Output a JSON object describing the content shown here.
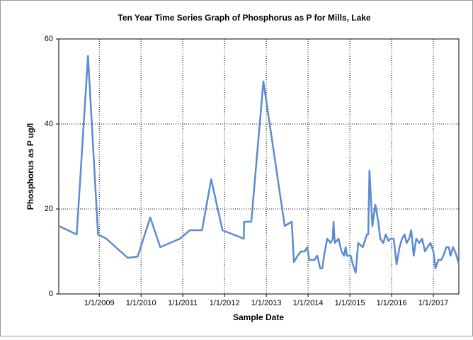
{
  "chart_data": {
    "type": "line",
    "title": "Ten Year Time Series Graph of Phosphorus as P for Mills, Lake",
    "x_label": "Sample Date",
    "y_label": "Phosphorus as P ug/l",
    "xlim": [
      2008.03,
      2017.61
    ],
    "ylim": [
      0,
      60
    ],
    "xticks": [
      {
        "value": 2009,
        "label": "1/1/2009"
      },
      {
        "value": 2010,
        "label": "1/1/2010"
      },
      {
        "value": 2011,
        "label": "1/1/2011"
      },
      {
        "value": 2012,
        "label": "1/1/2012"
      },
      {
        "value": 2013,
        "label": "1/1/2013"
      },
      {
        "value": 2014,
        "label": "1/1/2014"
      },
      {
        "value": 2015,
        "label": "1/1/2015"
      },
      {
        "value": 2016,
        "label": "1/1/2016"
      },
      {
        "value": 2017,
        "label": "1/1/2017"
      }
    ],
    "yticks": [
      0,
      20,
      40,
      60
    ],
    "grid": true,
    "x": [
      2008.03,
      2008.46,
      2008.73,
      2008.97,
      2009.17,
      2009.68,
      2009.92,
      2010.22,
      2010.46,
      2010.93,
      2011.17,
      2011.46,
      2011.68,
      2011.95,
      2012.46,
      2012.47,
      2012.64,
      2012.93,
      2013.44,
      2013.61,
      2013.66,
      2013.75,
      2013.83,
      2013.92,
      2013.98,
      2014.03,
      2014.15,
      2014.22,
      2014.29,
      2014.34,
      2014.39,
      2014.46,
      2014.54,
      2014.59,
      2014.61,
      2014.64,
      2014.73,
      2014.8,
      2014.86,
      2014.9,
      2014.93,
      2015.02,
      2015.07,
      2015.14,
      2015.2,
      2015.31,
      2015.41,
      2015.44,
      2015.47,
      2015.54,
      2015.61,
      2015.68,
      2015.73,
      2015.8,
      2015.86,
      2015.92,
      2015.98,
      2016.05,
      2016.12,
      2016.19,
      2016.25,
      2016.31,
      2016.36,
      2016.42,
      2016.47,
      2016.53,
      2016.59,
      2016.66,
      2016.73,
      2016.8,
      2016.86,
      2016.93,
      2017.0,
      2017.05,
      2017.12,
      2017.19,
      2017.24,
      2017.31,
      2017.37,
      2017.41,
      2017.47,
      2017.54,
      2017.61
    ],
    "series": [
      {
        "name": "Phosphorus as P",
        "color": "#5b8bd0",
        "values": [
          16,
          14,
          56,
          14,
          13,
          8.5,
          8.8,
          18,
          11,
          13,
          15,
          15,
          27,
          15,
          13,
          17,
          17,
          50,
          16,
          17,
          7.5,
          9,
          10,
          10,
          11,
          8,
          8,
          9,
          6,
          6,
          9.5,
          13,
          12,
          13,
          17,
          12,
          13,
          10,
          9,
          11,
          9,
          9,
          7,
          5,
          12,
          11,
          14,
          14,
          29,
          16,
          21,
          17,
          13,
          12,
          14,
          12.5,
          13,
          13,
          7,
          11,
          13,
          14,
          12,
          13,
          15,
          9,
          13,
          12,
          13,
          10,
          11,
          12,
          10,
          6,
          8,
          8,
          9,
          11,
          11,
          9,
          11,
          9.5,
          7
        ]
      }
    ]
  }
}
